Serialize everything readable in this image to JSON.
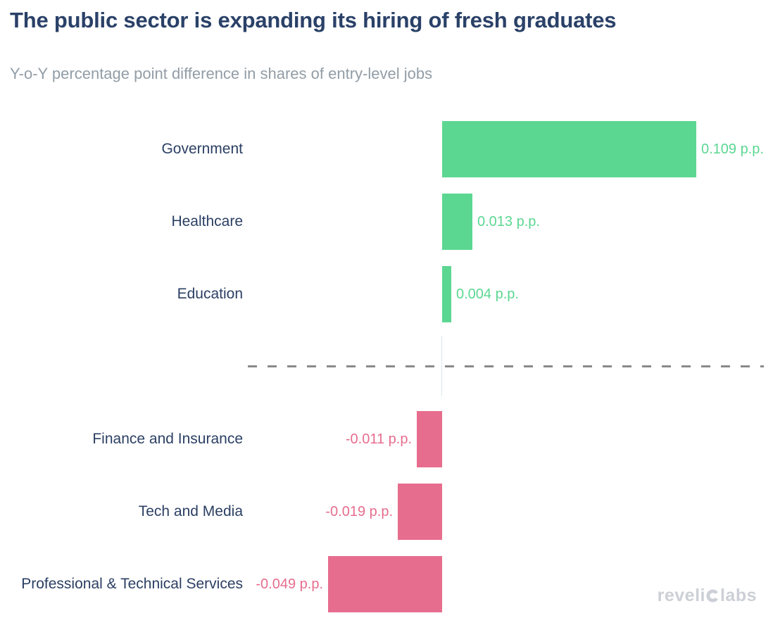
{
  "header": {
    "title": "The public sector is expanding its hiring of fresh graduates",
    "subtitle": "Y-o-Y percentage point difference in shares of entry-level jobs"
  },
  "watermark": {
    "brand_part1": "reveli",
    "brand_part2": "labs",
    "full_text": "revelio labs"
  },
  "colors": {
    "positive": "#5cd792",
    "negative": "#e66d8e",
    "title_navy": "#2a4168",
    "label_navy": "#2b3f63",
    "subtitle_gray": "#929da6",
    "divider_gray": "#8a8a8a",
    "zero_line": "#dce8ec",
    "watermark_gray": "#ccd0d6"
  },
  "chart_data": {
    "type": "bar",
    "orientation": "horizontal",
    "title": "The public sector is expanding its hiring of fresh graduates",
    "subtitle": "Y-o-Y percentage point difference in shares of entry-level jobs",
    "unit": "p.p.",
    "categories": [
      "Government",
      "Healthcare",
      "Education",
      "Finance and Insurance",
      "Tech and Media",
      "Professional & Technical Services"
    ],
    "values": [
      0.109,
      0.013,
      0.004,
      -0.011,
      -0.019,
      -0.049
    ],
    "value_labels": [
      "0.109 p.p.",
      "0.013 p.p.",
      "0.004 p.p.",
      "-0.011 p.p.",
      "-0.019 p.p.",
      "-0.049 p.p."
    ],
    "xlim": [
      -0.06,
      0.142
    ],
    "grid": false,
    "legend": false,
    "divider_note": "dashed horizontal line separates positive (public sector) group from negative (private sector) group"
  }
}
